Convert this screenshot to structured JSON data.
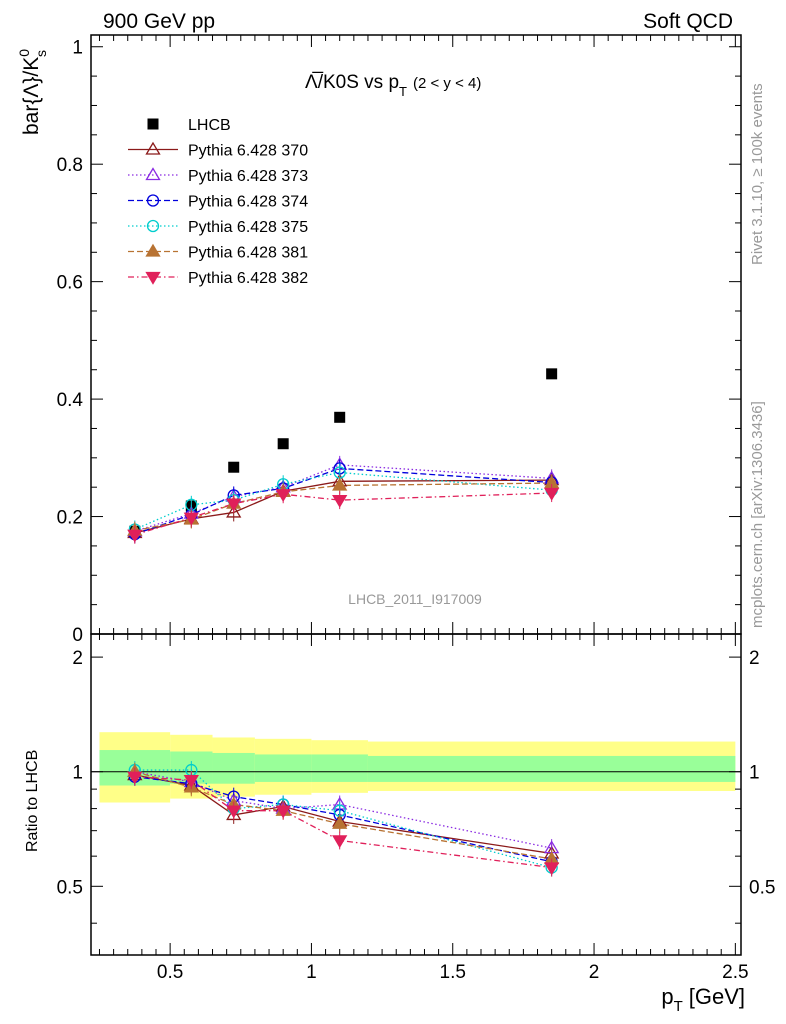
{
  "header": {
    "left": "900 GeV pp",
    "right": "Soft QCD"
  },
  "side_labels": {
    "rivet": "Rivet 3.1.10, ≥ 100k events",
    "mcplots": "mcplots.cern.ch [arXiv:1306.3436]"
  },
  "chart_data": [
    {
      "type": "scatter",
      "title_main": "Λ̅/K0S vs p",
      "title_sub": "T",
      "title_range": "(2 < y < 4)",
      "watermark": "LHCB_2011_I917009",
      "ylabel": "bar{Λ}/K",
      "ylabel_sup": "0",
      "ylabel_sub": "s",
      "ylim": [
        0,
        1.02
      ],
      "xlim": [
        0.22,
        2.52
      ],
      "yticks": [
        0,
        0.2,
        0.4,
        0.6,
        0.8,
        1
      ],
      "ytick_labels": [
        "0",
        "0.2",
        "0.4",
        "0.6",
        "0.8",
        "1"
      ],
      "x": [
        0.375,
        0.575,
        0.725,
        0.9,
        1.1,
        1.85
      ],
      "series": [
        {
          "name": "LHCB",
          "color": "#000000",
          "marker": "square",
          "line": "none",
          "values": [
            0.175,
            0.218,
            0.284,
            0.324,
            0.369,
            0.443
          ]
        },
        {
          "name": "Pythia 6.428 370",
          "color": "#8b1a1a",
          "marker": "triangle-open",
          "line": "solid",
          "values": [
            0.172,
            0.196,
            0.207,
            0.243,
            0.26,
            0.262
          ]
        },
        {
          "name": "Pythia 6.428 373",
          "color": "#8a2be2",
          "marker": "triangle-open",
          "line": "dotted",
          "values": [
            0.175,
            0.205,
            0.234,
            0.25,
            0.288,
            0.265
          ]
        },
        {
          "name": "Pythia 6.428 374",
          "color": "#0000dd",
          "marker": "circle-open",
          "line": "dashed",
          "values": [
            0.17,
            0.203,
            0.236,
            0.248,
            0.282,
            0.258
          ]
        },
        {
          "name": "Pythia 6.428 375",
          "color": "#00cdcd",
          "marker": "circle-open",
          "line": "dotted",
          "values": [
            0.178,
            0.22,
            0.228,
            0.255,
            0.275,
            0.245
          ]
        },
        {
          "name": "Pythia 6.428 381",
          "color": "#b87333",
          "marker": "triangle",
          "line": "dashed",
          "values": [
            0.176,
            0.195,
            0.222,
            0.242,
            0.253,
            0.257
          ]
        },
        {
          "name": "Pythia 6.428 382",
          "color": "#e0205a",
          "marker": "triangle-down",
          "line": "dashdot",
          "values": [
            0.169,
            0.198,
            0.222,
            0.238,
            0.228,
            0.24
          ]
        }
      ]
    },
    {
      "type": "scatter",
      "ylabel": "Ratio to LHCB",
      "xlabel": "p",
      "xlabel_sub": "T",
      "xlabel_unit": "[GeV]",
      "ylim": [
        0.33,
        2.3
      ],
      "xlim": [
        0.22,
        2.52
      ],
      "yticks": [
        0.5,
        1,
        2
      ],
      "ytick_labels": [
        "0.5",
        "1",
        "2"
      ],
      "xticks": [
        0.5,
        1,
        1.5,
        2,
        2.5
      ],
      "xtick_labels": [
        "0.5",
        "1",
        "1.5",
        "2",
        "2.5"
      ],
      "bands": {
        "x_edges": [
          0.25,
          0.5,
          0.65,
          0.8,
          1.0,
          1.2,
          2.5
        ],
        "yellow_lo": [
          0.83,
          0.85,
          0.86,
          0.87,
          0.88,
          0.89
        ],
        "yellow_hi": [
          1.27,
          1.25,
          1.23,
          1.22,
          1.21,
          1.2
        ],
        "green_lo": [
          0.92,
          0.93,
          0.93,
          0.94,
          0.94,
          0.94
        ],
        "green_hi": [
          1.14,
          1.13,
          1.12,
          1.11,
          1.11,
          1.1
        ]
      },
      "x": [
        0.375,
        0.575,
        0.725,
        0.9,
        1.1,
        1.85
      ],
      "series": [
        {
          "name": "Pythia 6.428 370",
          "values": [
            0.98,
            0.92,
            0.77,
            0.81,
            0.74,
            0.61
          ]
        },
        {
          "name": "Pythia 6.428 373",
          "values": [
            1.0,
            0.94,
            0.84,
            0.8,
            0.82,
            0.63
          ]
        },
        {
          "name": "Pythia 6.428 374",
          "values": [
            0.97,
            0.93,
            0.86,
            0.82,
            0.77,
            0.58
          ]
        },
        {
          "name": "Pythia 6.428 375",
          "values": [
            1.01,
            1.01,
            0.8,
            0.82,
            0.79,
            0.56
          ]
        },
        {
          "name": "Pythia 6.428 381",
          "values": [
            1.0,
            0.91,
            0.82,
            0.79,
            0.73,
            0.59
          ]
        },
        {
          "name": "Pythia 6.428 382",
          "values": [
            0.97,
            0.95,
            0.79,
            0.79,
            0.66,
            0.56
          ]
        }
      ]
    }
  ]
}
